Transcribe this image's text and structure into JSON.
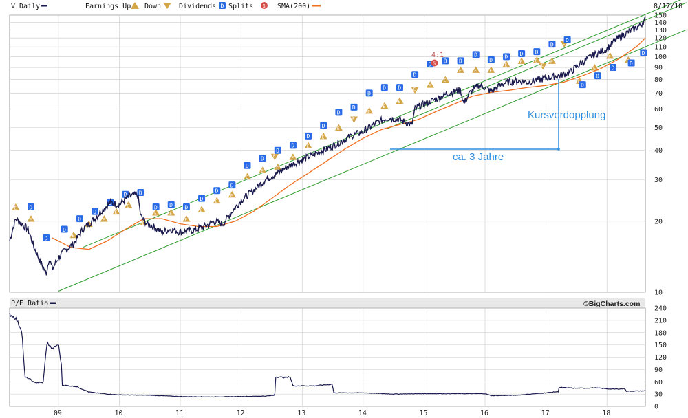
{
  "header": {
    "ticker_label": "V Daily",
    "date": "8/17/18",
    "legend": [
      {
        "label": "Earnings Up",
        "icon": "earnings-up-icon"
      },
      {
        "label": "Down",
        "icon": "earnings-down-icon"
      },
      {
        "label": "Dividends",
        "icon": "dividend-icon"
      },
      {
        "label": "Splits",
        "icon": "split-icon"
      },
      {
        "label": "SMA(200)",
        "icon": "sma-line-icon"
      }
    ]
  },
  "lower_header": {
    "label": "P/E Ratio",
    "brand": "©BigCharts.com"
  },
  "colors": {
    "price": "#1a1a4e",
    "sma": "#f07020",
    "channel": "#2e9c2e",
    "annotation": "#2e8ee0",
    "earnings": "#d4a64a",
    "dividend": "#2a6ce8",
    "split": "#d94c4c",
    "grid": "#c9c9c9"
  },
  "annotations": {
    "doubling": "Kursverdopplung",
    "period": "ca. 3 Jahre",
    "split_text": "4:1",
    "earnings_letter": "E",
    "dividend_letter": "D",
    "split_letter": "S"
  },
  "chart_data": [
    {
      "type": "line",
      "title": "V Daily",
      "y_scale": "log",
      "ylim": [
        10,
        150
      ],
      "y_ticks": [
        10,
        20,
        30,
        40,
        50,
        60,
        70,
        80,
        90,
        100,
        110,
        120,
        130,
        140,
        150
      ],
      "x_tick_labels": [
        "09",
        "10",
        "11",
        "12",
        "13",
        "14",
        "15",
        "16",
        "17",
        "18"
      ],
      "x_tick_years": [
        2009,
        2010,
        2011,
        2012,
        2013,
        2014,
        2015,
        2016,
        2017,
        2018
      ],
      "xlim": [
        2008.2,
        2018.63
      ],
      "grid": true,
      "legend": "top",
      "series": [
        {
          "name": "V Daily",
          "x": [
            2008.2,
            2008.3,
            2008.4,
            2008.5,
            2008.6,
            2008.7,
            2008.8,
            2008.85,
            2008.9,
            2009.0,
            2009.1,
            2009.25,
            2009.4,
            2009.55,
            2009.7,
            2009.85,
            2010.0,
            2010.15,
            2010.3,
            2010.35,
            2010.45,
            2010.55,
            2010.7,
            2010.85,
            2011.0,
            2011.2,
            2011.4,
            2011.55,
            2011.7,
            2011.85,
            2012.0,
            2012.2,
            2012.4,
            2012.6,
            2012.75,
            2012.9,
            2013.0,
            2013.2,
            2013.4,
            2013.6,
            2013.8,
            2014.0,
            2014.2,
            2014.4,
            2014.6,
            2014.8,
            2014.85,
            2015.0,
            2015.2,
            2015.4,
            2015.6,
            2015.65,
            2015.75,
            2015.9,
            2016.0,
            2016.1,
            2016.3,
            2016.5,
            2016.7,
            2016.9,
            2017.0,
            2017.2,
            2017.4,
            2017.6,
            2017.8,
            2018.0,
            2018.15,
            2018.3,
            2018.45,
            2018.55,
            2018.63
          ],
          "y": [
            16.5,
            20.5,
            19.5,
            18.5,
            15.5,
            13.5,
            12.0,
            14.0,
            12.5,
            14.0,
            15.0,
            16.0,
            18.5,
            20.0,
            22.0,
            24.0,
            23.5,
            25.5,
            26.0,
            21.0,
            19.5,
            19.0,
            18.0,
            18.5,
            18.0,
            18.3,
            19.0,
            20.0,
            19.5,
            22.0,
            24.5,
            27.0,
            30.0,
            32.0,
            34.0,
            35.5,
            36.5,
            38.5,
            40.5,
            43.0,
            46.0,
            48.0,
            52.0,
            55.0,
            54.0,
            51.0,
            60.0,
            63.0,
            66.0,
            70.0,
            72.0,
            63.0,
            70.0,
            76.0,
            74.0,
            71.0,
            77.0,
            79.0,
            78.0,
            80.0,
            81.0,
            83.0,
            86.0,
            95.0,
            102.0,
            108.0,
            118.0,
            125.0,
            131.0,
            136.0,
            144.0
          ]
        },
        {
          "name": "SMA(200)",
          "x": [
            2008.9,
            2009.2,
            2009.5,
            2009.8,
            2010.1,
            2010.4,
            2010.7,
            2011.0,
            2011.3,
            2011.6,
            2011.9,
            2012.2,
            2012.5,
            2012.8,
            2013.1,
            2013.4,
            2013.7,
            2014.0,
            2014.3,
            2014.6,
            2014.9,
            2015.2,
            2015.5,
            2015.8,
            2016.1,
            2016.4,
            2016.7,
            2017.0,
            2017.3,
            2017.6,
            2017.9,
            2018.2,
            2018.5,
            2018.63
          ],
          "y": [
            17.0,
            15.5,
            15.2,
            16.5,
            18.5,
            20.5,
            20.5,
            19.5,
            19.0,
            19.0,
            20.0,
            22.0,
            25.0,
            28.5,
            32.0,
            36.0,
            40.5,
            45.0,
            49.0,
            51.5,
            54.0,
            58.5,
            63.0,
            68.0,
            70.5,
            72.0,
            74.0,
            75.5,
            78.0,
            83.0,
            89.0,
            98.0,
            111.0,
            120.0
          ]
        }
      ],
      "channel_lines": [
        {
          "x": [
            2009.0,
            2018.63
          ],
          "y": [
            10.1,
            110.0
          ]
        },
        {
          "x": [
            2009.4,
            2018.63
          ],
          "y": [
            15.5,
            151.0
          ]
        },
        {
          "x": [
            2014.4,
            2018.63
          ],
          "y": [
            49.5,
            143.0
          ]
        }
      ],
      "earnings_up_markers": [
        {
          "x": 2008.3,
          "y": 23
        },
        {
          "x": 2008.55,
          "y": 20.5
        },
        {
          "x": 2009.25,
          "y": 17.5
        },
        {
          "x": 2009.5,
          "y": 19.5
        },
        {
          "x": 2009.75,
          "y": 20.5
        },
        {
          "x": 2009.95,
          "y": 22
        },
        {
          "x": 2010.15,
          "y": 23.5
        },
        {
          "x": 2010.4,
          "y": 19.8
        },
        {
          "x": 2010.6,
          "y": 21.8
        },
        {
          "x": 2010.85,
          "y": 21.8
        },
        {
          "x": 2011.1,
          "y": 20.5
        },
        {
          "x": 2011.35,
          "y": 22.5
        },
        {
          "x": 2011.6,
          "y": 24.5
        },
        {
          "x": 2011.85,
          "y": 26
        },
        {
          "x": 2012.1,
          "y": 31
        },
        {
          "x": 2012.35,
          "y": 33
        },
        {
          "x": 2012.6,
          "y": 34
        },
        {
          "x": 2012.85,
          "y": 37.5
        },
        {
          "x": 2013.1,
          "y": 42
        },
        {
          "x": 2013.35,
          "y": 46
        },
        {
          "x": 2013.6,
          "y": 50
        },
        {
          "x": 2014.1,
          "y": 59
        },
        {
          "x": 2014.35,
          "y": 62
        },
        {
          "x": 2014.6,
          "y": 65
        },
        {
          "x": 2015.1,
          "y": 76
        },
        {
          "x": 2015.35,
          "y": 80
        },
        {
          "x": 2015.6,
          "y": 88
        },
        {
          "x": 2015.85,
          "y": 88
        },
        {
          "x": 2016.1,
          "y": 88
        },
        {
          "x": 2016.35,
          "y": 93
        },
        {
          "x": 2016.6,
          "y": 96
        },
        {
          "x": 2016.85,
          "y": 97
        },
        {
          "x": 2017.1,
          "y": 96
        },
        {
          "x": 2017.55,
          "y": 79
        },
        {
          "x": 2017.8,
          "y": 90
        },
        {
          "x": 2018.05,
          "y": 101
        },
        {
          "x": 2018.35,
          "y": 97
        }
      ],
      "earnings_down_markers": [
        {
          "x": 2012.55,
          "y": 37.5
        },
        {
          "x": 2013.85,
          "y": 54
        },
        {
          "x": 2014.85,
          "y": 72
        },
        {
          "x": 2016.95,
          "y": 91
        },
        {
          "x": 2017.3,
          "y": 113
        }
      ],
      "dividend_markers": [
        {
          "x": 2008.55,
          "y": 23
        },
        {
          "x": 2008.8,
          "y": 17
        },
        {
          "x": 2009.1,
          "y": 18.5
        },
        {
          "x": 2009.35,
          "y": 20.5
        },
        {
          "x": 2009.6,
          "y": 22
        },
        {
          "x": 2009.85,
          "y": 24
        },
        {
          "x": 2010.1,
          "y": 26
        },
        {
          "x": 2010.35,
          "y": 26.5
        },
        {
          "x": 2010.6,
          "y": 23
        },
        {
          "x": 2010.85,
          "y": 23.5
        },
        {
          "x": 2011.1,
          "y": 23
        },
        {
          "x": 2011.35,
          "y": 25
        },
        {
          "x": 2011.6,
          "y": 27
        },
        {
          "x": 2011.85,
          "y": 28.5
        },
        {
          "x": 2012.1,
          "y": 34.5
        },
        {
          "x": 2012.35,
          "y": 37
        },
        {
          "x": 2012.6,
          "y": 40
        },
        {
          "x": 2012.85,
          "y": 42
        },
        {
          "x": 2013.1,
          "y": 46
        },
        {
          "x": 2013.35,
          "y": 51
        },
        {
          "x": 2013.6,
          "y": 58
        },
        {
          "x": 2013.85,
          "y": 61
        },
        {
          "x": 2014.1,
          "y": 70
        },
        {
          "x": 2014.35,
          "y": 74
        },
        {
          "x": 2014.6,
          "y": 74
        },
        {
          "x": 2014.85,
          "y": 84
        },
        {
          "x": 2015.1,
          "y": 93
        },
        {
          "x": 2015.35,
          "y": 96
        },
        {
          "x": 2015.6,
          "y": 96
        },
        {
          "x": 2015.85,
          "y": 102
        },
        {
          "x": 2016.1,
          "y": 97
        },
        {
          "x": 2016.35,
          "y": 100
        },
        {
          "x": 2016.6,
          "y": 103
        },
        {
          "x": 2016.85,
          "y": 105
        },
        {
          "x": 2017.1,
          "y": 113
        },
        {
          "x": 2017.35,
          "y": 118
        },
        {
          "x": 2017.6,
          "y": 76
        },
        {
          "x": 2017.85,
          "y": 83
        },
        {
          "x": 2018.1,
          "y": 90
        },
        {
          "x": 2018.4,
          "y": 94
        },
        {
          "x": 2018.6,
          "y": 104
        }
      ],
      "split_markers": [
        {
          "x": 2015.17,
          "y": 94
        }
      ]
    },
    {
      "type": "line",
      "title": "P/E Ratio",
      "ylim": [
        0,
        240
      ],
      "y_ticks": [
        0,
        30,
        60,
        90,
        120,
        150,
        180,
        210,
        240
      ],
      "x_tick_labels": [
        "09",
        "10",
        "11",
        "12",
        "13",
        "14",
        "15",
        "16",
        "17",
        "18"
      ],
      "xlim": [
        2008.2,
        2018.63
      ],
      "grid": true,
      "series": [
        {
          "name": "P/E Ratio",
          "x": [
            2008.2,
            2008.3,
            2008.4,
            2008.45,
            2008.55,
            2008.6,
            2008.75,
            2008.8,
            2008.82,
            2008.9,
            2009.0,
            2009.05,
            2009.06,
            2009.3,
            2009.5,
            2009.8,
            2010.0,
            2010.5,
            2011.0,
            2011.5,
            2012.0,
            2012.4,
            2012.55,
            2012.56,
            2012.75,
            2012.8,
            2012.85,
            2013.2,
            2013.5,
            2013.51,
            2014.0,
            2014.5,
            2015.0,
            2015.5,
            2016.0,
            2016.1,
            2016.5,
            2017.0,
            2017.2,
            2017.21,
            2017.5,
            2017.8,
            2018.1,
            2018.3,
            2018.31,
            2018.63
          ],
          "y": [
            225,
            215,
            185,
            72,
            65,
            58,
            58,
            140,
            155,
            140,
            152,
            100,
            52,
            48,
            35,
            30,
            28,
            27,
            24,
            23,
            24,
            25,
            27,
            72,
            70,
            73,
            50,
            50,
            54,
            33,
            33,
            30,
            31,
            31,
            31,
            26,
            27,
            33,
            36,
            46,
            44,
            45,
            42,
            43,
            37,
            38
          ]
        }
      ]
    }
  ]
}
